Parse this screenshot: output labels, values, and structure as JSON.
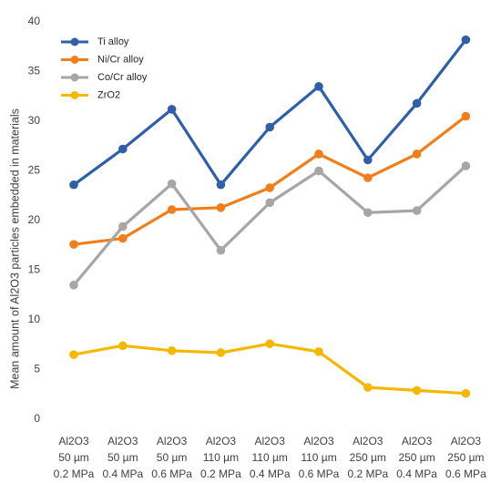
{
  "chart_data": {
    "type": "line",
    "title": "",
    "xlabel": "",
    "ylabel": "Mean amount of Al2O3 particles embedded in materials",
    "ylim": [
      0,
      40
    ],
    "yticks": [
      "0",
      "5",
      "10",
      "15",
      "20",
      "25",
      "30",
      "35",
      "40"
    ],
    "grid": false,
    "legend_position": "top-left",
    "categories": [
      [
        "Al2O3",
        "50 µm",
        "0.2 MPa"
      ],
      [
        "Al2O3",
        "50 µm",
        "0.4 MPa"
      ],
      [
        "Al2O3",
        "50 µm",
        "0.6 MPa"
      ],
      [
        "Al2O3",
        "110 µm",
        "0.2 MPa"
      ],
      [
        "Al2O3",
        "110 µm",
        "0.4 MPa"
      ],
      [
        "Al2O3",
        "110 µm",
        "0.6 MPa"
      ],
      [
        "Al2O3",
        "250 µm",
        "0.2 MPa"
      ],
      [
        "Al2O3",
        "250 µm",
        "0.4 MPa"
      ],
      [
        "Al2O3",
        "250 µm",
        "0.6 MPa"
      ]
    ],
    "series": [
      {
        "name": "Ti alloy",
        "color": "#2e5fa8",
        "values": [
          23.6,
          27.2,
          31.2,
          23.6,
          29.4,
          33.5,
          26.1,
          31.8,
          38.2
        ]
      },
      {
        "name": "Ni/Cr alloy",
        "color": "#f07f1a",
        "values": [
          17.6,
          18.2,
          21.1,
          21.3,
          23.3,
          26.7,
          24.3,
          26.7,
          30.5
        ]
      },
      {
        "name": "Co/Cr alloy",
        "color": "#a6a6a6",
        "values": [
          13.5,
          19.4,
          23.7,
          17.0,
          21.8,
          25.0,
          20.8,
          21.0,
          25.5
        ]
      },
      {
        "name": "ZrO2",
        "color": "#f5b800",
        "values": [
          6.5,
          7.4,
          6.9,
          6.7,
          7.6,
          6.8,
          3.2,
          2.9,
          2.6
        ]
      }
    ]
  }
}
